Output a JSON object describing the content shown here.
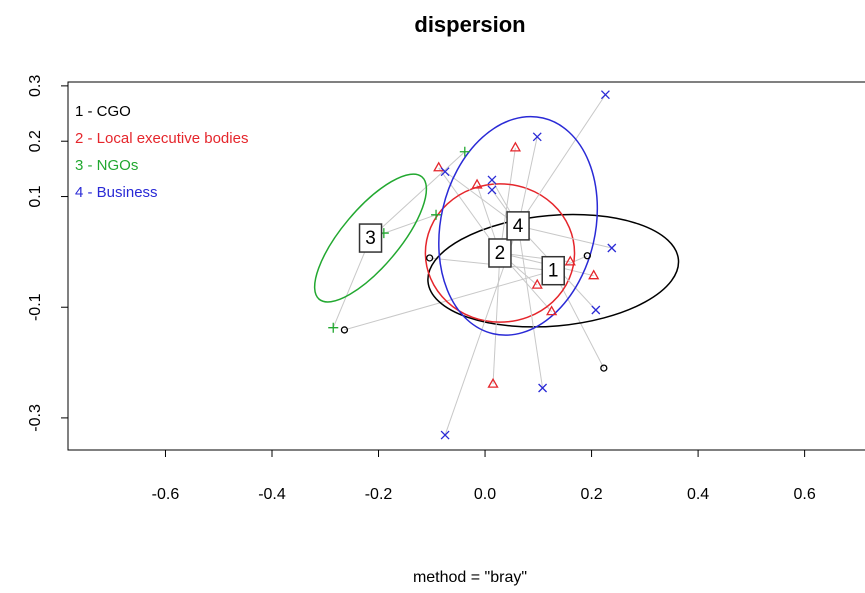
{
  "chart_data": {
    "type": "scatter",
    "title": "dispersion",
    "x_label": "method = \"bray\"",
    "xlim": [
      -0.783,
      0.719
    ],
    "ylim": [
      -0.358,
      0.307
    ],
    "xticks": [
      -0.6,
      -0.4,
      -0.2,
      {
        "value": 0,
        "label": "0.0"
      },
      0.2,
      0.4,
      0.6
    ],
    "yticks": [
      -0.3,
      -0.1,
      0.1,
      0.2,
      0.3
    ],
    "legend": "top-left",
    "series": [
      {
        "name": "1 - CGO",
        "color": "#000000",
        "marker": "circle",
        "x": [
          -0.264,
          -0.104,
          0.192,
          0.223
        ],
        "y": [
          -0.141,
          -0.011,
          -0.007,
          -0.21
        ],
        "label": "1",
        "centroid": [
          0.128,
          -0.034
        ],
        "ellipse": {
          "rx": 0.236,
          "ry": 0.1,
          "angle": 5
        }
      },
      {
        "name": "2 - Local executive bodies",
        "color": "#e5262c",
        "marker": "triangle",
        "x": [
          -0.087,
          -0.015,
          0.057,
          0.204,
          0.098,
          0.125,
          0.015,
          0.16
        ],
        "y": [
          0.152,
          0.121,
          0.188,
          -0.043,
          -0.06,
          -0.108,
          -0.239,
          -0.018
        ],
        "label": "2",
        "centroid": [
          0.028,
          -0.002
        ],
        "ellipse": {
          "rx": 0.14,
          "ry": 0.125,
          "angle": 0
        }
      },
      {
        "name": "3 - NGOs",
        "color": "#22a830",
        "marker": "plus",
        "x": [
          -0.038,
          -0.092,
          -0.285,
          -0.19
        ],
        "y": [
          0.181,
          0.067,
          -0.137,
          0.034
        ],
        "label": "3",
        "centroid": [
          -0.215,
          0.025
        ],
        "ellipse": {
          "rx": 0.15,
          "ry": 0.052,
          "angle": 50
        }
      },
      {
        "name": "4 - Business",
        "color": "#2a2ad6",
        "marker": "cross",
        "x": [
          0.226,
          0.098,
          -0.075,
          0.013,
          0.013,
          0.238,
          0.208,
          0.108,
          -0.075
        ],
        "y": [
          0.284,
          0.208,
          0.145,
          0.13,
          0.112,
          0.007,
          -0.105,
          -0.246,
          -0.331
        ],
        "label": "4",
        "centroid": [
          0.062,
          0.047
        ],
        "ellipse": {
          "rx": 0.145,
          "ry": 0.2,
          "angle": -13
        }
      }
    ]
  }
}
